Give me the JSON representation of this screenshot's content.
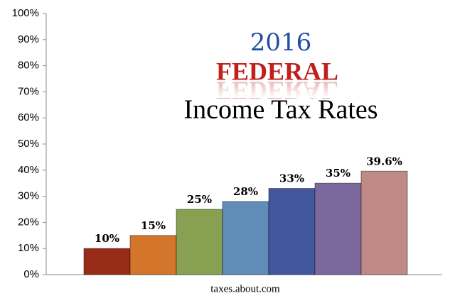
{
  "chart_data": {
    "type": "bar",
    "title": [
      "2016",
      "FEDERAL",
      "Income Tax Rates"
    ],
    "xlabel": "taxes.about.com",
    "categories": [
      null,
      null,
      null,
      null,
      null,
      null,
      null
    ],
    "values": [
      10,
      15,
      25,
      28,
      33,
      35,
      39.6
    ],
    "value_labels": [
      "10%",
      "15%",
      "25%",
      "28%",
      "33%",
      "35%",
      "39.6%"
    ],
    "colors": [
      "#982c16",
      "#d4752c",
      "#87a052",
      "#5f8cb9",
      "#43579f",
      "#7b699e",
      "#c08a86"
    ],
    "ylim": [
      0,
      100
    ],
    "yticks": [
      {
        "value": 0,
        "label": "0%"
      },
      {
        "value": 10,
        "label": "10%"
      },
      {
        "value": 20,
        "label": "20%"
      },
      {
        "value": 30,
        "label": "30%"
      },
      {
        "value": 40,
        "label": "40%"
      },
      {
        "value": 50,
        "label": "50%"
      },
      {
        "value": 60,
        "label": "60%"
      },
      {
        "value": 70,
        "label": "70%"
      },
      {
        "value": 80,
        "label": "80%"
      },
      {
        "value": 90,
        "label": "90%"
      },
      {
        "value": 100,
        "label": "100%"
      }
    ],
    "grid": false
  }
}
